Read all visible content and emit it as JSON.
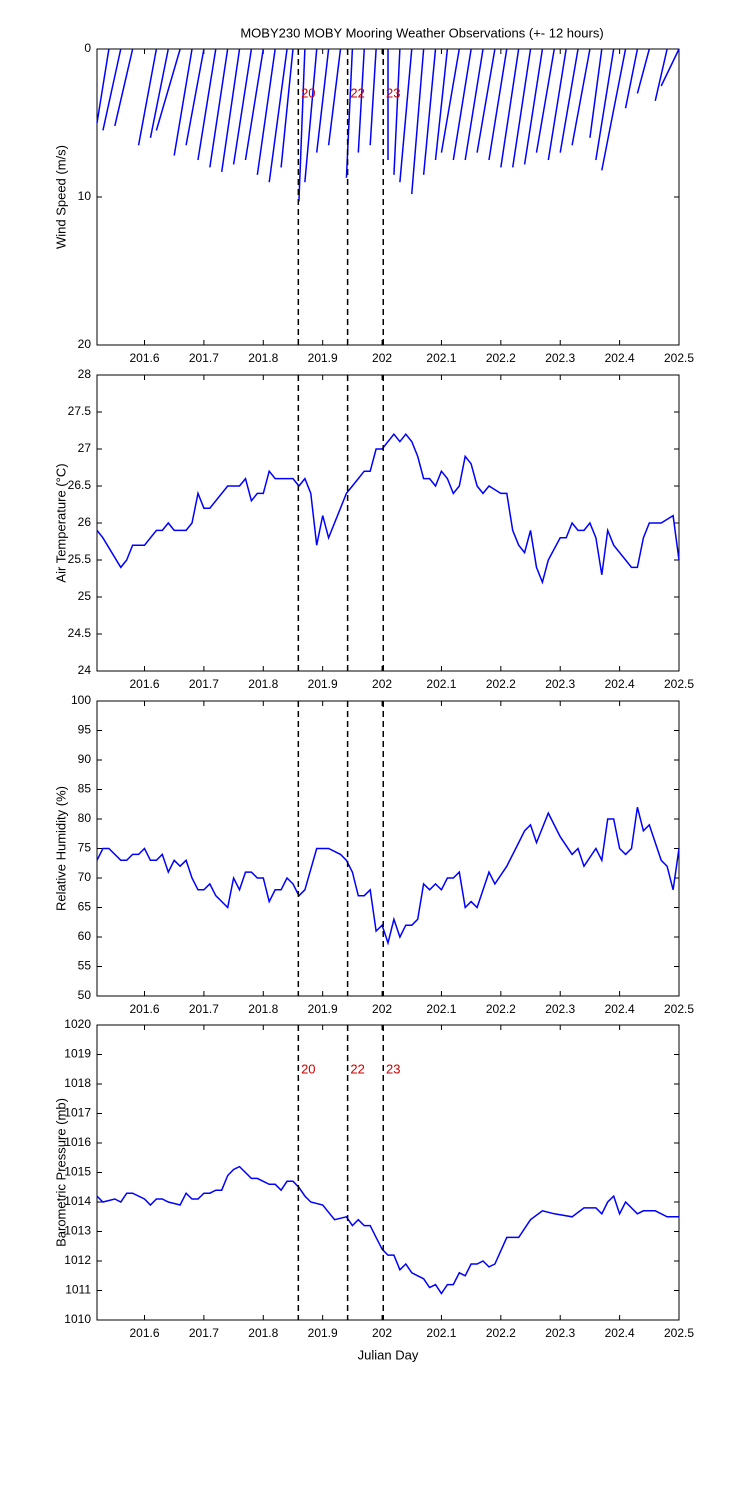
{
  "chart_data": [
    {
      "type": "stick",
      "title": "MOBY230 MOBY Mooring Weather Observations (+- 12 hours)",
      "ylabel": "Wind Speed (m/s)",
      "color": "#0000ff",
      "xlim": [
        201.52,
        202.5
      ],
      "xticks": [
        201.6,
        201.7,
        201.8,
        201.9,
        202,
        202.1,
        202.2,
        202.3,
        202.4,
        202.5
      ],
      "ylim": [
        20,
        0
      ],
      "yticks": [
        0,
        10,
        20
      ],
      "x": [
        201.54,
        201.56,
        201.58,
        201.62,
        201.64,
        201.66,
        201.68,
        201.7,
        201.72,
        201.74,
        201.76,
        201.78,
        201.8,
        201.82,
        201.84,
        201.85,
        201.87,
        201.89,
        201.91,
        201.93,
        201.95,
        201.97,
        201.99,
        202.01,
        202.03,
        202.05,
        202.07,
        202.09,
        202.11,
        202.13,
        202.15,
        202.17,
        202.19,
        202.21,
        202.23,
        202.25,
        202.27,
        202.29,
        202.31,
        202.33,
        202.35,
        202.37,
        202.39,
        202.41,
        202.43,
        202.45,
        202.48,
        202.5
      ],
      "x_end": [
        201.52,
        201.53,
        201.55,
        201.59,
        201.61,
        201.62,
        201.65,
        201.67,
        201.69,
        201.71,
        201.73,
        201.75,
        201.77,
        201.79,
        201.81,
        201.83,
        201.86,
        201.87,
        201.89,
        201.91,
        201.94,
        201.96,
        201.98,
        202.01,
        202.02,
        202.03,
        202.05,
        202.07,
        202.09,
        202.1,
        202.12,
        202.14,
        202.16,
        202.18,
        202.2,
        202.22,
        202.24,
        202.26,
        202.28,
        202.3,
        202.32,
        202.35,
        202.36,
        202.37,
        202.41,
        202.43,
        202.46,
        202.47
      ],
      "values": [
        5.0,
        5.5,
        5.2,
        6.5,
        6.0,
        5.5,
        7.2,
        6.5,
        7.5,
        8.0,
        8.3,
        7.8,
        7.5,
        8.5,
        9.0,
        8.0,
        10.3,
        9.0,
        7.0,
        6.5,
        8.7,
        7.0,
        6.5,
        7.5,
        8.5,
        9.0,
        9.8,
        8.5,
        7.5,
        7.0,
        7.5,
        7.5,
        7.0,
        7.5,
        8.0,
        8.0,
        7.8,
        7.0,
        7.5,
        7.0,
        6.5,
        6.0,
        7.5,
        8.2,
        4.0,
        3.0,
        3.5,
        2.5
      ],
      "vlines": [
        201.859,
        201.942,
        202.002
      ],
      "vline_labels": [
        "20",
        "22",
        "23"
      ]
    },
    {
      "type": "line",
      "ylabel": "Air Temperature (°C)",
      "color": "#0000ff",
      "xlim": [
        201.52,
        202.5
      ],
      "xticks": [
        201.6,
        201.7,
        201.8,
        201.9,
        202,
        202.1,
        202.2,
        202.3,
        202.4,
        202.5
      ],
      "ylim": [
        24,
        28
      ],
      "yticks": [
        24,
        24.5,
        25,
        25.5,
        26,
        26.5,
        27,
        27.5,
        28
      ],
      "x": [
        201.52,
        201.53,
        201.56,
        201.57,
        201.58,
        201.6,
        201.62,
        201.63,
        201.64,
        201.65,
        201.67,
        201.68,
        201.69,
        201.7,
        201.71,
        201.74,
        201.76,
        201.77,
        201.78,
        201.79,
        201.8,
        201.81,
        201.82,
        201.85,
        201.86,
        201.87,
        201.88,
        201.89,
        201.9,
        201.91,
        201.94,
        201.96,
        201.97,
        201.98,
        201.99,
        202.0,
        202.02,
        202.03,
        202.04,
        202.05,
        202.06,
        202.07,
        202.08,
        202.09,
        202.1,
        202.11,
        202.12,
        202.13,
        202.14,
        202.15,
        202.16,
        202.17,
        202.18,
        202.2,
        202.21,
        202.22,
        202.23,
        202.24,
        202.25,
        202.26,
        202.27,
        202.28,
        202.3,
        202.31,
        202.32,
        202.33,
        202.34,
        202.35,
        202.36,
        202.37,
        202.38,
        202.39,
        202.42,
        202.43,
        202.44,
        202.45,
        202.46,
        202.47,
        202.49,
        202.5
      ],
      "values": [
        25.9,
        25.8,
        25.4,
        25.5,
        25.7,
        25.7,
        25.9,
        25.9,
        26.0,
        25.9,
        25.9,
        26.0,
        26.4,
        26.2,
        26.2,
        26.5,
        26.5,
        26.6,
        26.3,
        26.4,
        26.4,
        26.7,
        26.6,
        26.6,
        26.5,
        26.6,
        26.4,
        25.7,
        26.1,
        25.8,
        26.4,
        26.6,
        26.7,
        26.7,
        27.0,
        27.0,
        27.2,
        27.1,
        27.2,
        27.1,
        26.9,
        26.6,
        26.6,
        26.5,
        26.7,
        26.6,
        26.4,
        26.5,
        26.9,
        26.8,
        26.5,
        26.4,
        26.5,
        26.4,
        26.4,
        25.9,
        25.7,
        25.6,
        25.9,
        25.4,
        25.2,
        25.5,
        25.8,
        25.8,
        26.0,
        25.9,
        25.9,
        26.0,
        25.8,
        25.3,
        25.9,
        25.7,
        25.4,
        25.4,
        25.8,
        26.0,
        26.0,
        26.0,
        26.1,
        25.5
      ],
      "vlines": [
        201.859,
        201.942,
        202.002
      ]
    },
    {
      "type": "line",
      "ylabel": "Relative Humidity (%)",
      "color": "#0000ff",
      "xlim": [
        201.52,
        202.5
      ],
      "xticks": [
        201.6,
        201.7,
        201.8,
        201.9,
        202,
        202.1,
        202.2,
        202.3,
        202.4,
        202.5
      ],
      "ylim": [
        50,
        100
      ],
      "yticks": [
        50,
        55,
        60,
        65,
        70,
        75,
        80,
        85,
        90,
        95,
        100
      ],
      "x": [
        201.52,
        201.53,
        201.54,
        201.56,
        201.57,
        201.58,
        201.59,
        201.6,
        201.61,
        201.62,
        201.63,
        201.64,
        201.65,
        201.66,
        201.67,
        201.68,
        201.69,
        201.7,
        201.71,
        201.72,
        201.74,
        201.75,
        201.76,
        201.77,
        201.78,
        201.79,
        201.8,
        201.81,
        201.82,
        201.83,
        201.84,
        201.85,
        201.86,
        201.87,
        201.89,
        201.91,
        201.93,
        201.94,
        201.95,
        201.96,
        201.97,
        201.98,
        201.99,
        202.0,
        202.01,
        202.02,
        202.03,
        202.04,
        202.05,
        202.06,
        202.07,
        202.08,
        202.09,
        202.1,
        202.11,
        202.12,
        202.13,
        202.14,
        202.15,
        202.16,
        202.18,
        202.19,
        202.21,
        202.23,
        202.24,
        202.25,
        202.26,
        202.28,
        202.3,
        202.32,
        202.33,
        202.34,
        202.36,
        202.37,
        202.38,
        202.39,
        202.4,
        202.41,
        202.42,
        202.43,
        202.44,
        202.45,
        202.47,
        202.48,
        202.49,
        202.5
      ],
      "values": [
        73,
        75,
        75,
        73,
        73,
        74,
        74,
        75,
        73,
        73,
        74,
        71,
        73,
        72,
        73,
        70,
        68,
        68,
        69,
        67,
        65,
        70,
        68,
        71,
        71,
        70,
        70,
        66,
        68,
        68,
        70,
        69,
        67,
        68,
        75,
        75,
        74,
        73,
        71,
        67,
        67,
        68,
        61,
        62,
        59,
        63,
        60,
        62,
        62,
        63,
        69,
        68,
        69,
        68,
        70,
        70,
        71,
        65,
        66,
        65,
        71,
        69,
        72,
        76,
        78,
        79,
        76,
        81,
        77,
        74,
        75,
        72,
        75,
        73,
        80,
        80,
        75,
        74,
        75,
        82,
        78,
        79,
        73,
        72,
        68,
        75
      ],
      "vlines": [
        201.859,
        201.942,
        202.002
      ]
    },
    {
      "type": "line",
      "ylabel": "Barometric Pressure (mb)",
      "xlabel": "Julian Day",
      "color": "#0000ff",
      "xlim": [
        201.52,
        202.5
      ],
      "xticks": [
        201.6,
        201.7,
        201.8,
        201.9,
        202,
        202.1,
        202.2,
        202.3,
        202.4,
        202.5
      ],
      "ylim": [
        1010,
        1020
      ],
      "yticks": [
        1010,
        1011,
        1012,
        1013,
        1014,
        1015,
        1016,
        1017,
        1018,
        1019,
        1020
      ],
      "x": [
        201.52,
        201.53,
        201.55,
        201.56,
        201.57,
        201.58,
        201.6,
        201.61,
        201.62,
        201.63,
        201.64,
        201.66,
        201.67,
        201.68,
        201.69,
        201.7,
        201.71,
        201.72,
        201.73,
        201.74,
        201.75,
        201.76,
        201.78,
        201.79,
        201.81,
        201.82,
        201.83,
        201.84,
        201.85,
        201.86,
        201.87,
        201.88,
        201.9,
        201.92,
        201.94,
        201.95,
        201.96,
        201.97,
        201.98,
        201.99,
        202.0,
        202.01,
        202.02,
        202.03,
        202.04,
        202.05,
        202.06,
        202.07,
        202.08,
        202.09,
        202.1,
        202.11,
        202.12,
        202.13,
        202.14,
        202.15,
        202.16,
        202.17,
        202.18,
        202.19,
        202.21,
        202.23,
        202.25,
        202.27,
        202.29,
        202.32,
        202.34,
        202.36,
        202.37,
        202.38,
        202.39,
        202.4,
        202.41,
        202.43,
        202.44,
        202.46,
        202.48,
        202.5
      ],
      "values": [
        1014.2,
        1014.0,
        1014.1,
        1014.0,
        1014.3,
        1014.3,
        1014.1,
        1013.9,
        1014.1,
        1014.1,
        1014.0,
        1013.9,
        1014.3,
        1014.1,
        1014.1,
        1014.3,
        1014.3,
        1014.4,
        1014.4,
        1014.9,
        1015.1,
        1015.2,
        1014.8,
        1014.8,
        1014.6,
        1014.6,
        1014.4,
        1014.7,
        1014.7,
        1014.5,
        1014.2,
        1014.0,
        1013.9,
        1013.4,
        1013.5,
        1013.2,
        1013.4,
        1013.2,
        1013.2,
        1012.8,
        1012.4,
        1012.2,
        1012.2,
        1011.7,
        1011.9,
        1011.6,
        1011.5,
        1011.4,
        1011.1,
        1011.2,
        1010.9,
        1011.2,
        1011.2,
        1011.6,
        1011.5,
        1011.9,
        1011.9,
        1012.0,
        1011.8,
        1011.9,
        1012.8,
        1012.8,
        1013.4,
        1013.7,
        1013.6,
        1013.5,
        1013.8,
        1013.8,
        1013.6,
        1014.0,
        1014.2,
        1013.6,
        1014.0,
        1013.6,
        1013.7,
        1013.7,
        1013.5,
        1013.5
      ],
      "vlines": [
        201.859,
        201.942,
        202.002
      ],
      "vline_labels": [
        "20",
        "22",
        "23"
      ]
    }
  ]
}
